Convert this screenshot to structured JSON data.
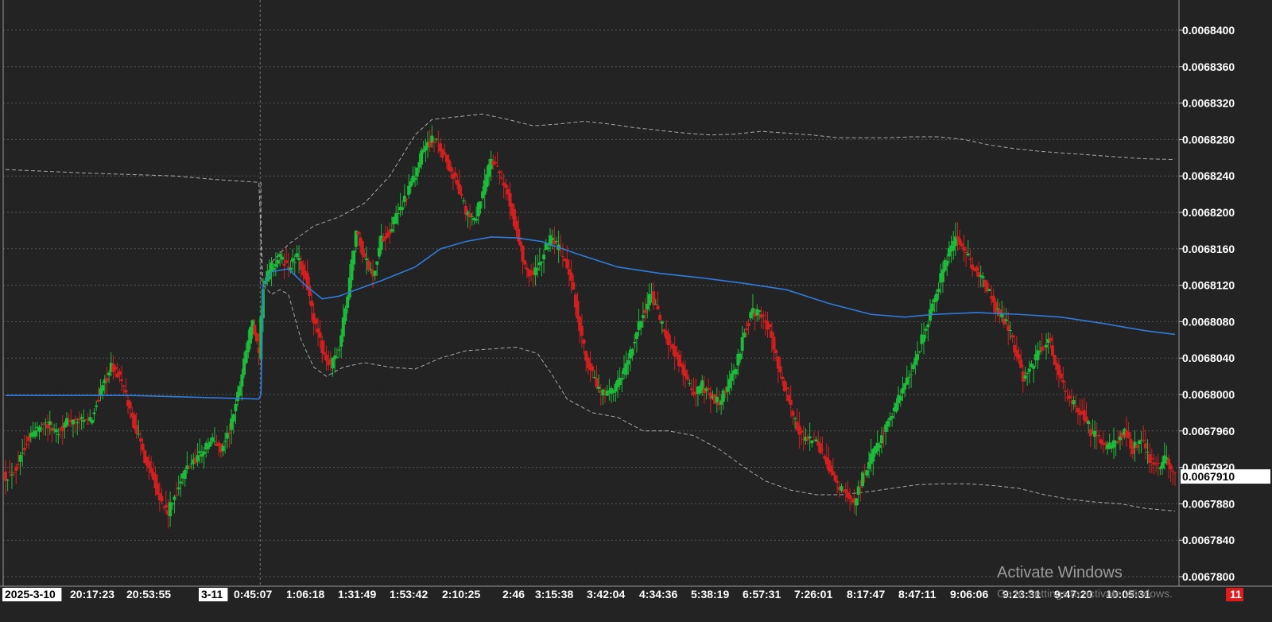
{
  "chart_data": {
    "type": "candlestick",
    "title": "",
    "xlabel": "",
    "ylabel": "",
    "ylim": [
      0.00678,
      0.00684
    ],
    "y_ticks": [
      "0.0068400",
      "0.0068360",
      "0.0068320",
      "0.0068280",
      "0.0068240",
      "0.0068200",
      "0.0068160",
      "0.0068120",
      "0.0068080",
      "0.0068040",
      "0.0068000",
      "0.0067960",
      "0.0067920",
      "0.0067880",
      "0.0067840",
      "0.0067800"
    ],
    "current_price": "0.0067910",
    "x_ticks": [
      {
        "label": "2025-3-10",
        "highlight": true
      },
      {
        "label": "20:17:23",
        "highlight": false
      },
      {
        "label": "20:53:55",
        "highlight": false
      },
      {
        "label": "3-11",
        "highlight": true
      },
      {
        "label": "0:45:07",
        "highlight": false
      },
      {
        "label": "1:06:18",
        "highlight": false
      },
      {
        "label": "1:31:49",
        "highlight": false
      },
      {
        "label": "1:53:42",
        "highlight": false
      },
      {
        "label": "2:10:25",
        "highlight": false
      },
      {
        "label": "2:46",
        "highlight": false
      },
      {
        "label": "3:15:38",
        "highlight": false
      },
      {
        "label": "3:42:04",
        "highlight": false
      },
      {
        "label": "4:34:36",
        "highlight": false
      },
      {
        "label": "5:38:19",
        "highlight": false
      },
      {
        "label": "6:57:31",
        "highlight": false
      },
      {
        "label": "7:26:01",
        "highlight": false
      },
      {
        "label": "8:17:47",
        "highlight": false
      },
      {
        "label": "8:47:11",
        "highlight": false
      },
      {
        "label": "9:06:06",
        "highlight": false
      },
      {
        "label": "9:23:31",
        "highlight": false
      },
      {
        "label": "9:47:20",
        "highlight": false
      },
      {
        "label": "10:05:31",
        "highlight": false
      }
    ],
    "badge": "11",
    "close_path": [
      [
        0,
        0.006791
      ],
      [
        5,
        0.006792
      ],
      [
        10,
        0.006795
      ],
      [
        18,
        0.006797
      ],
      [
        24,
        0.006796
      ],
      [
        30,
        0.006797
      ],
      [
        40,
        0.006797
      ],
      [
        46,
        0.006801
      ],
      [
        50,
        0.006803
      ],
      [
        54,
        0.006802
      ],
      [
        58,
        0.006799
      ],
      [
        62,
        0.006796
      ],
      [
        66,
        0.006793
      ],
      [
        70,
        0.006791
      ],
      [
        74,
        0.006788
      ],
      [
        77,
        0.006787
      ],
      [
        82,
        0.00679
      ],
      [
        86,
        0.006792
      ],
      [
        90,
        0.006793
      ],
      [
        94,
        0.006794
      ],
      [
        98,
        0.006795
      ],
      [
        102,
        0.006794
      ],
      [
        106,
        0.006796
      ],
      [
        110,
        0.0068
      ],
      [
        114,
        0.006805
      ],
      [
        117,
        0.006808
      ],
      [
        120,
        0.006804
      ],
      [
        122,
        0.006812
      ],
      [
        126,
        0.006814
      ],
      [
        130,
        0.006815
      ],
      [
        134,
        0.006814
      ],
      [
        138,
        0.006815
      ],
      [
        142,
        0.006813
      ],
      [
        146,
        0.006808
      ],
      [
        150,
        0.006805
      ],
      [
        154,
        0.006803
      ],
      [
        158,
        0.006805
      ],
      [
        162,
        0.006811
      ],
      [
        166,
        0.006818
      ],
      [
        170,
        0.006815
      ],
      [
        174,
        0.006813
      ],
      [
        178,
        0.006817
      ],
      [
        182,
        0.006818
      ],
      [
        186,
        0.00682
      ],
      [
        190,
        0.006822
      ],
      [
        194,
        0.006824
      ],
      [
        198,
        0.006827
      ],
      [
        202,
        0.006828
      ],
      [
        206,
        0.006827
      ],
      [
        210,
        0.006825
      ],
      [
        214,
        0.006823
      ],
      [
        218,
        0.00682
      ],
      [
        222,
        0.006819
      ],
      [
        226,
        0.006822
      ],
      [
        230,
        0.006826
      ],
      [
        234,
        0.006824
      ],
      [
        238,
        0.006822
      ],
      [
        242,
        0.006818
      ],
      [
        246,
        0.006814
      ],
      [
        250,
        0.006813
      ],
      [
        254,
        0.006815
      ],
      [
        258,
        0.006817
      ],
      [
        262,
        0.006816
      ],
      [
        266,
        0.006814
      ],
      [
        270,
        0.00681
      ],
      [
        274,
        0.006805
      ],
      [
        278,
        0.006802
      ],
      [
        282,
        0.0068
      ],
      [
        286,
        0.0068
      ],
      [
        290,
        0.006801
      ],
      [
        294,
        0.006803
      ],
      [
        298,
        0.006806
      ],
      [
        302,
        0.006809
      ],
      [
        306,
        0.006811
      ],
      [
        310,
        0.006808
      ],
      [
        314,
        0.006806
      ],
      [
        318,
        0.006804
      ],
      [
        322,
        0.006802
      ],
      [
        326,
        0.0068
      ],
      [
        330,
        0.006801
      ],
      [
        334,
        0.0068
      ],
      [
        338,
        0.006799
      ],
      [
        342,
        0.006801
      ],
      [
        346,
        0.006803
      ],
      [
        350,
        0.006807
      ],
      [
        354,
        0.006809
      ],
      [
        358,
        0.006809
      ],
      [
        362,
        0.006807
      ],
      [
        366,
        0.006803
      ],
      [
        370,
        0.0068
      ],
      [
        374,
        0.006797
      ],
      [
        378,
        0.006795
      ],
      [
        382,
        0.006795
      ],
      [
        386,
        0.006794
      ],
      [
        390,
        0.006792
      ],
      [
        394,
        0.00679
      ],
      [
        398,
        0.006789
      ],
      [
        402,
        0.006788
      ],
      [
        406,
        0.006791
      ],
      [
        410,
        0.006793
      ],
      [
        414,
        0.006795
      ],
      [
        418,
        0.006797
      ],
      [
        422,
        0.006799
      ],
      [
        426,
        0.006801
      ],
      [
        430,
        0.006803
      ],
      [
        434,
        0.006806
      ],
      [
        438,
        0.006809
      ],
      [
        442,
        0.006812
      ],
      [
        446,
        0.006815
      ],
      [
        450,
        0.006817
      ],
      [
        454,
        0.006816
      ],
      [
        458,
        0.006814
      ],
      [
        462,
        0.006813
      ],
      [
        466,
        0.006811
      ],
      [
        470,
        0.006809
      ],
      [
        474,
        0.006808
      ],
      [
        478,
        0.006805
      ],
      [
        482,
        0.006802
      ],
      [
        486,
        0.006803
      ],
      [
        490,
        0.006805
      ],
      [
        494,
        0.006806
      ],
      [
        498,
        0.006803
      ],
      [
        502,
        0.0068
      ],
      [
        506,
        0.006799
      ],
      [
        510,
        0.006798
      ],
      [
        514,
        0.006796
      ],
      [
        518,
        0.006795
      ],
      [
        522,
        0.006794
      ],
      [
        526,
        0.006795
      ],
      [
        530,
        0.006796
      ],
      [
        534,
        0.006794
      ],
      [
        538,
        0.006795
      ],
      [
        542,
        0.006793
      ],
      [
        546,
        0.006792
      ],
      [
        550,
        0.006793
      ],
      [
        554,
        0.006791
      ]
    ],
    "ma_line": [
      [
        0,
        0.0067999
      ],
      [
        60,
        0.0067999
      ],
      [
        120,
        0.0067995
      ],
      [
        121,
        0.0068
      ],
      [
        122,
        0.006812
      ],
      [
        126,
        0.0068135
      ],
      [
        134,
        0.0068138
      ],
      [
        142,
        0.006812
      ],
      [
        150,
        0.0068105
      ],
      [
        158,
        0.0068108
      ],
      [
        166,
        0.0068115
      ],
      [
        178,
        0.0068125
      ],
      [
        194,
        0.006814
      ],
      [
        206,
        0.006816
      ],
      [
        218,
        0.0068168
      ],
      [
        230,
        0.0068173
      ],
      [
        242,
        0.0068172
      ],
      [
        254,
        0.0068168
      ],
      [
        270,
        0.0068155
      ],
      [
        290,
        0.006814
      ],
      [
        310,
        0.0068133
      ],
      [
        330,
        0.0068128
      ],
      [
        350,
        0.0068122
      ],
      [
        370,
        0.0068115
      ],
      [
        390,
        0.00681
      ],
      [
        410,
        0.0068088
      ],
      [
        426,
        0.0068085
      ],
      [
        440,
        0.0068088
      ],
      [
        460,
        0.006809
      ],
      [
        480,
        0.0068088
      ],
      [
        500,
        0.0068085
      ],
      [
        520,
        0.0068078
      ],
      [
        540,
        0.006807
      ],
      [
        554,
        0.0068066
      ]
    ],
    "upper_band": [
      [
        0,
        0.0068247
      ],
      [
        40,
        0.0068243
      ],
      [
        80,
        0.006824
      ],
      [
        100,
        0.0068236
      ],
      [
        120,
        0.0068233
      ],
      [
        122,
        0.006812
      ],
      [
        126,
        0.0068145
      ],
      [
        134,
        0.0068165
      ],
      [
        146,
        0.0068185
      ],
      [
        158,
        0.0068195
      ],
      [
        170,
        0.006821
      ],
      [
        182,
        0.006824
      ],
      [
        194,
        0.0068285
      ],
      [
        202,
        0.0068302
      ],
      [
        214,
        0.0068305
      ],
      [
        226,
        0.0068308
      ],
      [
        238,
        0.0068302
      ],
      [
        250,
        0.0068295
      ],
      [
        262,
        0.0068297
      ],
      [
        274,
        0.00683
      ],
      [
        286,
        0.0068297
      ],
      [
        298,
        0.0068293
      ],
      [
        310,
        0.006829
      ],
      [
        322,
        0.0068287
      ],
      [
        334,
        0.0068285
      ],
      [
        346,
        0.0068286
      ],
      [
        358,
        0.0068289
      ],
      [
        370,
        0.0068287
      ],
      [
        382,
        0.0068285
      ],
      [
        394,
        0.0068282
      ],
      [
        406,
        0.0068282
      ],
      [
        418,
        0.0068282
      ],
      [
        430,
        0.0068283
      ],
      [
        442,
        0.0068283
      ],
      [
        454,
        0.006828
      ],
      [
        466,
        0.0068274
      ],
      [
        478,
        0.006827
      ],
      [
        490,
        0.0068267
      ],
      [
        502,
        0.0068265
      ],
      [
        514,
        0.0068263
      ],
      [
        526,
        0.0068261
      ],
      [
        538,
        0.0068259
      ],
      [
        554,
        0.0068258
      ]
    ],
    "lower_band": [
      [
        122,
        0.006812
      ],
      [
        126,
        0.006811
      ],
      [
        130,
        0.0068115
      ],
      [
        134,
        0.006811
      ],
      [
        140,
        0.006806
      ],
      [
        146,
        0.006803
      ],
      [
        152,
        0.006802
      ],
      [
        160,
        0.006803
      ],
      [
        170,
        0.0068035
      ],
      [
        182,
        0.006803
      ],
      [
        194,
        0.0068028
      ],
      [
        206,
        0.006804
      ],
      [
        218,
        0.0068048
      ],
      [
        230,
        0.006805
      ],
      [
        242,
        0.0068052
      ],
      [
        252,
        0.0068045
      ],
      [
        258,
        0.0068025
      ],
      [
        266,
        0.0067995
      ],
      [
        278,
        0.006798
      ],
      [
        290,
        0.0067975
      ],
      [
        302,
        0.006796
      ],
      [
        314,
        0.006796
      ],
      [
        326,
        0.0067955
      ],
      [
        338,
        0.006794
      ],
      [
        350,
        0.006792
      ],
      [
        360,
        0.0067905
      ],
      [
        372,
        0.0067895
      ],
      [
        384,
        0.006789
      ],
      [
        396,
        0.006789
      ],
      [
        408,
        0.0067893
      ],
      [
        420,
        0.0067897
      ],
      [
        432,
        0.0067901
      ],
      [
        444,
        0.0067902
      ],
      [
        456,
        0.0067902
      ],
      [
        468,
        0.00679
      ],
      [
        480,
        0.0067897
      ],
      [
        492,
        0.006789
      ],
      [
        504,
        0.0067885
      ],
      [
        516,
        0.0067882
      ],
      [
        528,
        0.006788
      ],
      [
        540,
        0.0067875
      ],
      [
        554,
        0.0067872
      ]
    ],
    "gap_index": 121,
    "colors": {
      "background": "#232323",
      "grid": "#555555",
      "up": "#1dbb3a",
      "down": "#d21f1f",
      "ma": "#2f7bdc",
      "band": "#c8c8c8",
      "axis_text": "#ffffff",
      "badge_bg": "#e01b1b"
    }
  },
  "watermark": {
    "title": "Activate Windows",
    "subtitle": "Go to Settings to activate Windows."
  }
}
